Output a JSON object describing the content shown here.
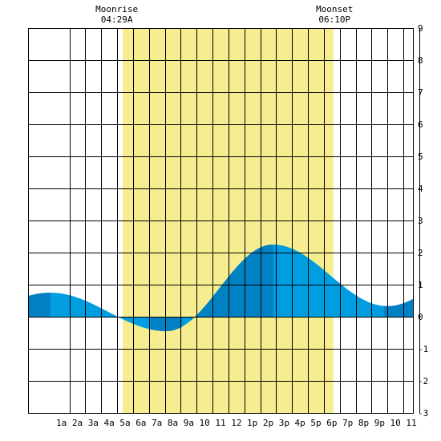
{
  "chart_data": {
    "type": "area",
    "title": "",
    "xlabel": "",
    "ylabel": "",
    "x_range_hours": [
      -1.1,
      23.1
    ],
    "ylim": [
      -3,
      9
    ],
    "y_ticks": [
      -3,
      -2,
      -1,
      0,
      1,
      2,
      3,
      4,
      5,
      6,
      7,
      8,
      9
    ],
    "x_ticks": [
      {
        "hour": 1,
        "label": "1a"
      },
      {
        "hour": 2,
        "label": "2a"
      },
      {
        "hour": 3,
        "label": "3a"
      },
      {
        "hour": 4,
        "label": "4a"
      },
      {
        "hour": 5,
        "label": "5a"
      },
      {
        "hour": 6,
        "label": "6a"
      },
      {
        "hour": 7,
        "label": "7a"
      },
      {
        "hour": 8,
        "label": "8a"
      },
      {
        "hour": 9,
        "label": "9a"
      },
      {
        "hour": 10,
        "label": "10"
      },
      {
        "hour": 11,
        "label": "11"
      },
      {
        "hour": 12,
        "label": "12"
      },
      {
        "hour": 13,
        "label": "1p"
      },
      {
        "hour": 14,
        "label": "2p"
      },
      {
        "hour": 15,
        "label": "3p"
      },
      {
        "hour": 16,
        "label": "4p"
      },
      {
        "hour": 17,
        "label": "5p"
      },
      {
        "hour": 18,
        "label": "6p"
      },
      {
        "hour": 19,
        "label": "7p"
      },
      {
        "hour": 20,
        "label": "8p"
      },
      {
        "hour": 21,
        "label": "9p"
      },
      {
        "hour": 22,
        "label": "10"
      },
      {
        "hour": 23,
        "label": "11"
      }
    ],
    "daylight": {
      "start_hour": 4.85,
      "end_hour": 18.1
    },
    "moonrise": {
      "label": "Moonrise",
      "time": "04:29A",
      "hour": 4.48
    },
    "moonset": {
      "label": "Moonset",
      "time": "06:10P",
      "hour": 18.17
    },
    "tide_extrema": [
      {
        "hour": 0.3,
        "value": 0.75
      },
      {
        "hour": 7.6,
        "value": -0.45
      },
      {
        "hour": 14.3,
        "value": 2.25
      },
      {
        "hour": 21.5,
        "value": 0.33
      }
    ],
    "dark_bands": [
      {
        "start_hour": -1.1,
        "end_hour": 0.3
      },
      {
        "start_hour": 6.6,
        "end_hour": 8.6
      },
      {
        "start_hour": 9.1,
        "end_hour": 14.3
      },
      {
        "start_hour": 21.3,
        "end_hour": 23.1
      }
    ],
    "colors": {
      "daylight": "#f5ed8f",
      "tide": "#009ee0",
      "tide_dark": "#0280c4",
      "grid": "#000000",
      "background": "#ffffff"
    }
  }
}
